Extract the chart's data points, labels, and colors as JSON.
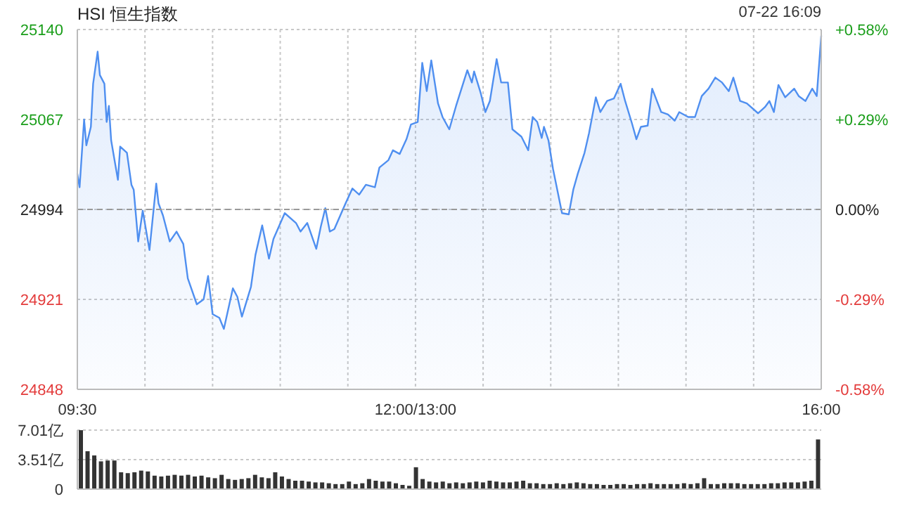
{
  "chart_data": [
    {
      "type": "area",
      "title": "HSI 恒生指数",
      "annotations": [
        "07-22 16:09"
      ],
      "color": "#4f8ff0",
      "categories": [
        "09:30",
        null,
        null,
        null,
        null,
        null,
        null,
        null,
        null,
        null,
        null,
        null,
        null,
        null,
        null,
        null,
        null,
        null,
        null,
        null,
        null,
        null,
        null,
        null,
        null,
        null,
        null,
        null,
        null,
        null,
        null,
        null,
        null,
        null,
        null,
        null,
        null,
        null,
        null,
        null,
        null,
        null,
        null,
        null,
        null,
        null,
        null,
        null,
        null,
        null,
        null,
        null,
        null,
        null,
        null,
        null,
        null,
        null,
        null,
        null,
        null,
        null,
        null,
        null,
        null,
        null,
        null,
        null,
        null,
        null,
        null,
        null,
        null,
        null,
        null,
        null,
        null,
        null,
        null,
        null,
        null,
        null,
        null,
        null,
        null,
        null,
        null,
        null,
        null,
        null,
        null,
        null,
        null,
        null,
        null,
        null,
        null,
        null,
        null,
        null,
        null,
        null,
        null,
        null,
        null,
        null,
        null,
        null,
        null,
        null,
        null,
        null,
        null,
        null,
        null,
        null,
        null,
        null,
        null,
        null,
        null,
        null,
        null,
        null,
        null,
        null,
        null,
        null,
        null,
        null,
        null,
        null,
        null,
        null,
        null,
        null,
        null,
        null,
        null,
        null,
        null,
        null,
        null,
        null,
        null,
        null,
        null,
        null,
        null,
        null,
        "12:00/13:00",
        null,
        null,
        null,
        null,
        null,
        null,
        null,
        null,
        null,
        null,
        null,
        null,
        null,
        null,
        null,
        null,
        null,
        null,
        null,
        null,
        null,
        null,
        null,
        null,
        null,
        null,
        null,
        null,
        null,
        null,
        null,
        null,
        null,
        null,
        null,
        null,
        null,
        null,
        null,
        null,
        null,
        null,
        null,
        null,
        null,
        null,
        null,
        null,
        null,
        null,
        null,
        null,
        null,
        null,
        null,
        null,
        null,
        null,
        null,
        null,
        null,
        null,
        null,
        null,
        null,
        null,
        null,
        null,
        null,
        null,
        null,
        null,
        null,
        null,
        null,
        null,
        null,
        null,
        null,
        null,
        null,
        null,
        null,
        null,
        null,
        null,
        null,
        null,
        null,
        null,
        null,
        null,
        null,
        null,
        null,
        null,
        null,
        null,
        null,
        null,
        null,
        null,
        null,
        null,
        null,
        null,
        null,
        null,
        null,
        null,
        null,
        null,
        null,
        null,
        null,
        null,
        null,
        null,
        null,
        null,
        null,
        null,
        null,
        null,
        null,
        null,
        null,
        null,
        null,
        null,
        null,
        null,
        null,
        null,
        null,
        null,
        null,
        null,
        null,
        null,
        null,
        null,
        null,
        null,
        null,
        null,
        null,
        null,
        null,
        null,
        null,
        null,
        null,
        null,
        null,
        null,
        null,
        null,
        null,
        null,
        null,
        null,
        null,
        null,
        null,
        null,
        null,
        null,
        null,
        null,
        null,
        null,
        null,
        null,
        null,
        null,
        null,
        null,
        null,
        "16:00"
      ],
      "values": [
        25023,
        25012,
        null,
        25067,
        25046,
        null,
        25061,
        25096,
        null,
        25122,
        25103,
        null,
        25096,
        25065,
        25078,
        25050,
        null,
        null,
        25018,
        25045,
        null,
        null,
        25040,
        null,
        25014,
        25010,
        null,
        24968,
        null,
        24993,
        null,
        null,
        24961,
        null,
        null,
        25015,
        24999,
        null,
        24989,
        null,
        null,
        24968,
        null,
        null,
        24976,
        null,
        null,
        24966,
        null,
        24938,
        null,
        null,
        null,
        24917,
        null,
        null,
        24921,
        null,
        24940,
        null,
        24909,
        null,
        null,
        24906,
        null,
        24897,
        null,
        null,
        null,
        24930,
        null,
        24923,
        null,
        24907,
        null,
        null,
        null,
        24931,
        null,
        24957,
        null,
        null,
        24981,
        null,
        null,
        24954,
        null,
        24970,
        null,
        null,
        null,
        null,
        24991,
        null,
        null,
        null,
        null,
        24983,
        null,
        24976,
        null,
        null,
        24983,
        null,
        null,
        null,
        24962,
        null,
        24980,
        null,
        24995,
        null,
        24976,
        null,
        24978,
        null,
        null,
        null,
        null,
        24999,
        null,
        null,
        25011,
        null,
        null,
        25006,
        null,
        null,
        25014,
        null,
        null,
        null,
        25012,
        null,
        25028,
        null,
        null,
        null,
        25034,
        null,
        25042,
        null,
        null,
        25039,
        null,
        null,
        25051,
        null,
        25063,
        null,
        null,
        25065,
        null,
        25113,
        null,
        25090,
        null,
        25115,
        null,
        null,
        25080,
        null,
        25069,
        null,
        null,
        25059,
        null,
        null,
        25078,
        null,
        null,
        null,
        null,
        25107,
        null,
        25097,
        25106,
        null,
        null,
        25088,
        null,
        25073,
        null,
        25082,
        null,
        null,
        25116,
        null,
        25097,
        null,
        null,
        25097,
        null,
        25059,
        null,
        null,
        null,
        25053,
        null,
        null,
        25042,
        null,
        25069,
        null,
        25065,
        null,
        25052,
        25061,
        null,
        25050,
        null,
        25027,
        null,
        null,
        null,
        24991,
        null,
        null,
        24990,
        null,
        25010,
        null,
        25023,
        null,
        null,
        25040,
        null,
        25056,
        null,
        null,
        25085,
        null,
        25073,
        null,
        null,
        25082,
        null,
        null,
        25084,
        null,
        null,
        25096,
        null,
        25082,
        null,
        null,
        25064,
        null,
        25051,
        null,
        25061,
        null,
        null,
        25062,
        null,
        25092,
        null,
        null,
        null,
        25073,
        null,
        null,
        25071,
        null,
        null,
        25066,
        null,
        25073,
        null,
        null,
        null,
        25069,
        null,
        null,
        25069,
        null,
        null,
        25086,
        null,
        null,
        25092,
        null,
        null,
        25101,
        null,
        null,
        25097,
        null,
        null,
        25090,
        null,
        25101,
        null,
        null,
        25082,
        null,
        null,
        25080,
        null,
        null,
        null,
        null,
        25072,
        null,
        null,
        25077,
        null,
        25082,
        null,
        25073,
        null,
        25095,
        null,
        null,
        25085,
        null,
        null,
        null,
        25092,
        null,
        25086,
        null,
        null,
        25082,
        null,
        null,
        25092,
        null,
        25086,
        null,
        25135
      ],
      "ylim": [
        24848,
        25140
      ],
      "yticks": [
        24848,
        24921,
        24994,
        25067,
        25140
      ],
      "y2lim": [
        -0.58,
        0.58
      ],
      "y2ticks": [
        {
          "value": -0.58,
          "label": "-0.58%"
        },
        {
          "value": -0.29,
          "label": "-0.29%"
        },
        {
          "value": 0,
          "label": "0.00%"
        },
        {
          "value": 0.29,
          "label": "+0.29%"
        },
        {
          "value": 0.58,
          "label": "+0.58%"
        }
      ],
      "ref_lines": [
        {
          "axis": "y",
          "value": 24994,
          "line_style": "dashed"
        }
      ],
      "grid": true
    },
    {
      "type": "bar",
      "color": "#333333",
      "tick_labels": "y",
      "grid": "y",
      "categories": [
        null,
        null,
        null,
        null,
        null,
        null,
        null,
        null,
        null,
        null,
        null,
        null,
        null,
        null,
        null,
        null,
        null,
        null,
        null,
        null,
        null,
        null,
        null,
        null,
        null,
        null,
        null,
        null,
        null,
        null,
        null,
        null,
        null,
        null,
        null,
        null,
        null,
        null,
        null,
        null,
        null,
        null,
        null,
        null,
        null,
        null,
        null,
        null,
        null,
        null,
        null,
        null,
        null,
        null,
        null,
        null,
        null,
        null,
        null,
        null,
        null,
        null,
        null,
        null,
        null,
        null,
        null,
        null,
        null,
        null,
        null,
        null,
        null,
        null,
        null,
        null,
        null,
        null,
        null,
        null,
        null,
        null,
        null,
        null,
        null,
        null,
        null,
        null,
        null,
        null,
        null,
        null,
        null,
        null,
        null,
        null,
        null,
        null,
        null,
        null,
        null,
        null,
        null,
        null,
        null,
        null,
        null,
        null,
        null,
        null,
        null
      ],
      "values": [
        7.0,
        4.5,
        4.0,
        3.3,
        3.4,
        3.4,
        2.0,
        1.9,
        2.0,
        2.2,
        2.1,
        1.6,
        1.5,
        1.6,
        1.7,
        1.6,
        1.7,
        1.5,
        1.6,
        1.4,
        1.3,
        1.7,
        1.2,
        1.1,
        1.2,
        1.3,
        1.7,
        1.4,
        1.3,
        2.0,
        1.5,
        1.2,
        1.0,
        1.0,
        0.9,
        0.8,
        0.8,
        0.7,
        0.6,
        0.6,
        0.9,
        0.6,
        0.7,
        1.2,
        1.0,
        0.9,
        0.9,
        0.7,
        0.5,
        0.4,
        2.6,
        1.2,
        0.9,
        0.8,
        0.9,
        0.7,
        0.8,
        0.7,
        0.8,
        0.9,
        0.8,
        1.0,
        0.9,
        0.8,
        0.8,
        0.9,
        1.0,
        0.7,
        0.7,
        0.6,
        0.6,
        0.7,
        0.6,
        0.7,
        0.8,
        0.7,
        0.6,
        0.6,
        0.5,
        0.5,
        0.6,
        0.6,
        0.5,
        0.6,
        0.6,
        0.7,
        0.6,
        0.6,
        0.6,
        0.6,
        0.7,
        0.6,
        0.7,
        1.3,
        0.6,
        0.6,
        0.7,
        0.7,
        0.7,
        0.6,
        0.6,
        0.6,
        0.6,
        0.7,
        0.7,
        0.8,
        0.8,
        0.8,
        0.9,
        1.0,
        5.9
      ],
      "ylim": [
        0,
        7.01
      ],
      "yticks": [
        0,
        {
          "value": 3.51,
          "label": "3.51亿"
        },
        {
          "value": 7.01,
          "label": "7.01亿"
        }
      ]
    }
  ]
}
